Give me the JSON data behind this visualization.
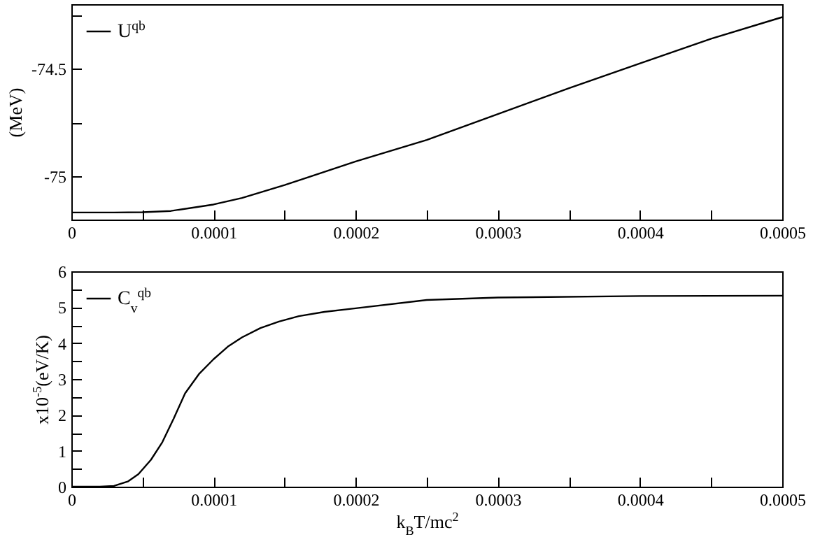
{
  "chart_data": [
    {
      "type": "line",
      "ylabel": "(MeV)",
      "legend": "top left",
      "xlim": [
        0,
        0.0005
      ],
      "xticks": [
        0,
        {
          "value": 5e-05,
          "label": null
        },
        0.0001,
        {
          "value": 0.00015,
          "label": null
        },
        0.0002,
        {
          "value": 0.00025,
          "label": null
        },
        0.0003,
        {
          "value": 0.00035,
          "label": null
        },
        0.0004,
        {
          "value": 0.00045,
          "label": null
        },
        0.0005
      ],
      "ylim": [
        -75.2,
        -74.2
      ],
      "yticks": [
        {
          "value": -75,
          "label": "-75"
        },
        {
          "value": -74.75,
          "label": null
        },
        {
          "value": -74.5,
          "label": "-74.5"
        },
        {
          "value": -74.25,
          "label": null
        }
      ],
      "x": [
        0,
        3e-05,
        5e-05,
        7e-05,
        0.0001,
        0.00012,
        0.00015,
        0.0002,
        0.00025,
        0.0003,
        0.00035,
        0.0004,
        0.00045,
        0.0005
      ],
      "series": [
        {
          "name": "U$^{qb}$",
          "color": "#000000",
          "values": [
            -75.167,
            -75.167,
            -75.166,
            -75.16,
            -75.13,
            -75.1,
            -75.04,
            -74.93,
            -74.83,
            -74.71,
            -74.59,
            -74.475,
            -74.36,
            -74.26
          ]
        }
      ]
    },
    {
      "type": "line",
      "xlabel": "k$_{B}$T/mc$^{2}$",
      "ylabel": "x10$^{-5}$(eV/K)",
      "legend": "top left",
      "xlim": [
        0,
        0.0005
      ],
      "xticks": [
        0,
        {
          "value": 5e-05,
          "label": null
        },
        0.0001,
        {
          "value": 0.00015,
          "label": null
        },
        0.0002,
        {
          "value": 0.00025,
          "label": null
        },
        0.0003,
        {
          "value": 0.00035,
          "label": null
        },
        0.0004,
        {
          "value": 0.00045,
          "label": null
        },
        0.0005
      ],
      "ylim": [
        0,
        6
      ],
      "yticks": [
        0,
        {
          "value": 0.5,
          "label": null
        },
        1,
        {
          "value": 1.5,
          "label": null
        },
        2,
        {
          "value": 2.5,
          "label": null
        },
        3,
        {
          "value": 3.5,
          "label": null
        },
        4,
        {
          "value": 4.5,
          "label": null
        },
        5,
        {
          "value": 5.5,
          "label": null
        },
        6
      ],
      "x": [
        0,
        2e-05,
        3e-05,
        4e-05,
        4.72e-05,
        5.6e-05,
        6.4e-05,
        7.2e-05,
        8e-05,
        9e-05,
        0.0001,
        0.00011,
        0.00012,
        0.000133,
        0.000146,
        0.00016,
        0.000178,
        0.0002,
        0.00025,
        0.0003,
        0.0004,
        0.0005
      ],
      "series": [
        {
          "name": "C$_{v}$$^{qb}$",
          "color": "#000000",
          "values": [
            0,
            0,
            0.02,
            0.15,
            0.35,
            0.75,
            1.24,
            1.9,
            2.6,
            3.15,
            3.55,
            3.9,
            4.16,
            4.42,
            4.6,
            4.75,
            4.87,
            4.97,
            5.2,
            5.27,
            5.31,
            5.32
          ]
        }
      ]
    }
  ]
}
